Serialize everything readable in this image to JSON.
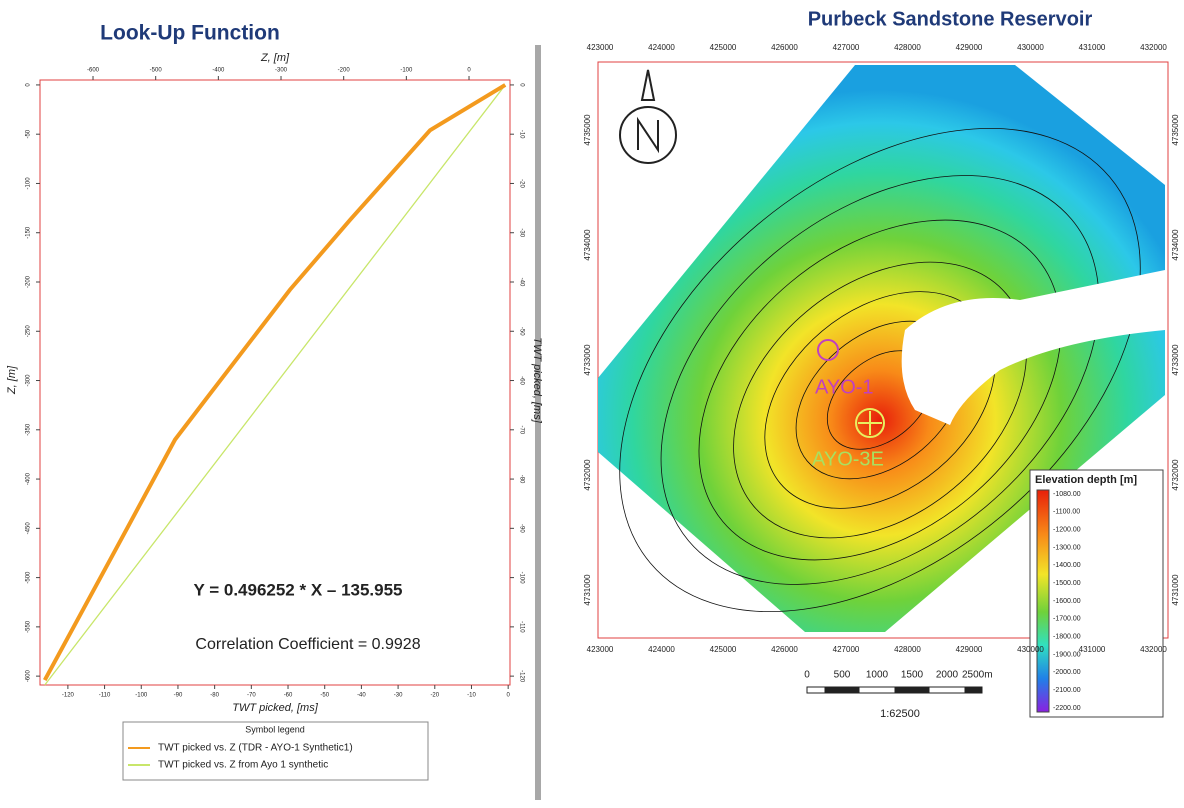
{
  "chart_data": [
    {
      "type": "line",
      "title": "Look-Up Function",
      "xlabel": "TWT picked, [ms]",
      "x2label": "Z, [m]",
      "ylabel": "Z, [m]",
      "y2label": "TWT picked, [ms]",
      "xlim": [
        -127.6,
        0.5
      ],
      "xticks": [
        -120,
        -110,
        -100,
        -90,
        -80,
        -70,
        -60,
        -50,
        -40,
        -30,
        -20,
        -10,
        0
      ],
      "x2lim": [
        -684.6,
        65.4
      ],
      "x2ticks": [
        -600,
        -500,
        -400,
        -300,
        -200,
        -100,
        0
      ],
      "ylim": [
        -609,
        5
      ],
      "yticks": [
        0,
        -50,
        -100,
        -150,
        -200,
        -250,
        -300,
        -350,
        -400,
        -450,
        -500,
        -550,
        -600
      ],
      "y2lim": [
        -121.8,
        1
      ],
      "y2ticks": [
        0,
        -10,
        -20,
        -30,
        -40,
        -50,
        -60,
        -70,
        -80,
        -90,
        -100,
        -110,
        -120
      ],
      "series": [
        {
          "name": "TWT picked vs. Z (TDR - AYO-1 Synthetic1)",
          "color": "#f39a1e",
          "x": [
            -0.8,
            -21.3,
            -43.1,
            -59.5,
            -82.6,
            -90.8,
            -108.5,
            -126.3
          ],
          "values": [
            0,
            -46,
            -137,
            -208,
            -320,
            -360,
            -482,
            -604
          ]
        },
        {
          "name": "TWT picked  vs. Z from Ayo 1 synthetic",
          "color": "#c8e66a",
          "x": [
            -0.8,
            -126.3
          ],
          "values": [
            0,
            -609
          ]
        }
      ],
      "legend_title": "Symbol legend",
      "annotations": [
        "Y = 0.496252 * X – 135.955",
        "Correlation Coefficient = 0.9928"
      ]
    }
  ],
  "map": {
    "title": "Purbeck Sandstone Reservoir",
    "x_ticks": [
      423000,
      424000,
      425000,
      426000,
      427000,
      428000,
      429000,
      430000,
      431000,
      432000
    ],
    "y_ticks": [
      4735000,
      4734000,
      4733000,
      4732000,
      4731000
    ],
    "wells": [
      "AYO-1",
      "AYO-3E"
    ],
    "colorbar_title": "Elevation depth [m]",
    "colorbar_labels": [
      "-1080.00",
      "-1100.00",
      "-1200.00",
      "-1300.00",
      "-1400.00",
      "-1500.00",
      "-1600.00",
      "-1700.00",
      "-1800.00",
      "-1900.00",
      "-2000.00",
      "-2100.00",
      "-2200.00"
    ],
    "scale_labels": [
      0,
      500,
      1000,
      1500,
      2000
    ],
    "scale_end": "2500m",
    "scale_ratio": "1:62500"
  }
}
